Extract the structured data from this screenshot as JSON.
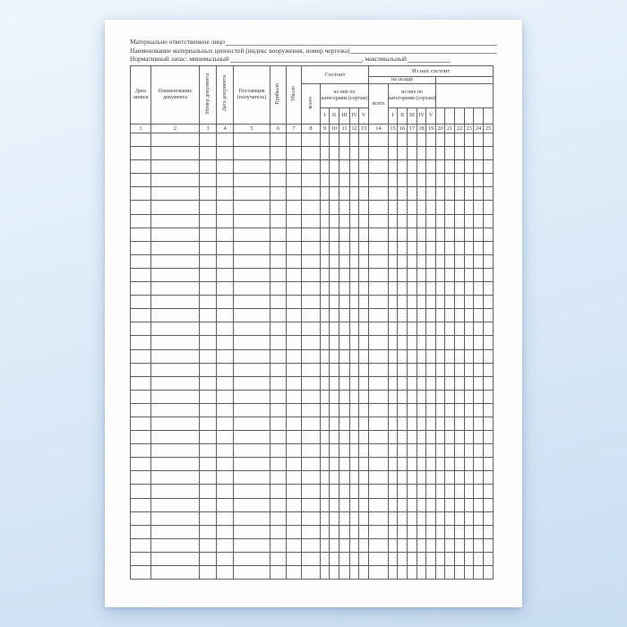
{
  "form": {
    "line1_label": "Материально ответственное лицо",
    "line2_label": "Наименование материальных ценностей (индекс вооружения, номер чертежа)",
    "line3_prefix": "Нормативный запас: минимальный",
    "line3_mid": ", максимальный"
  },
  "table": {
    "headers": {
      "date_of_entry": "Дата записи",
      "document_name": "Наименование документа",
      "document_number": "Номер документа",
      "document_date": "Дата документа",
      "supplier": "Поставщик (получатель)",
      "arrived": "Прибыло",
      "departed": "Убыло",
      "consists": "Состоит",
      "of_them_consists": "Из них состоит",
      "in_warehouse": "на складе",
      "total_left": "всего",
      "total_warehouse": "всего",
      "by_categories_left": "из них по категориям (сортам)",
      "by_categories_warehouse": "из них по категориям (сортам)",
      "category_grades": [
        "I",
        "II",
        "III",
        "IV",
        "V"
      ]
    },
    "column_numbers": [
      "1",
      "2",
      "3",
      "4",
      "5",
      "6",
      "7",
      "8",
      "9",
      "10",
      "11",
      "12",
      "13",
      "14",
      "15",
      "16",
      "17",
      "18",
      "19",
      "20",
      "21",
      "22",
      "23",
      "24",
      "25"
    ],
    "body": {
      "rows": 33,
      "cols": 25
    }
  }
}
